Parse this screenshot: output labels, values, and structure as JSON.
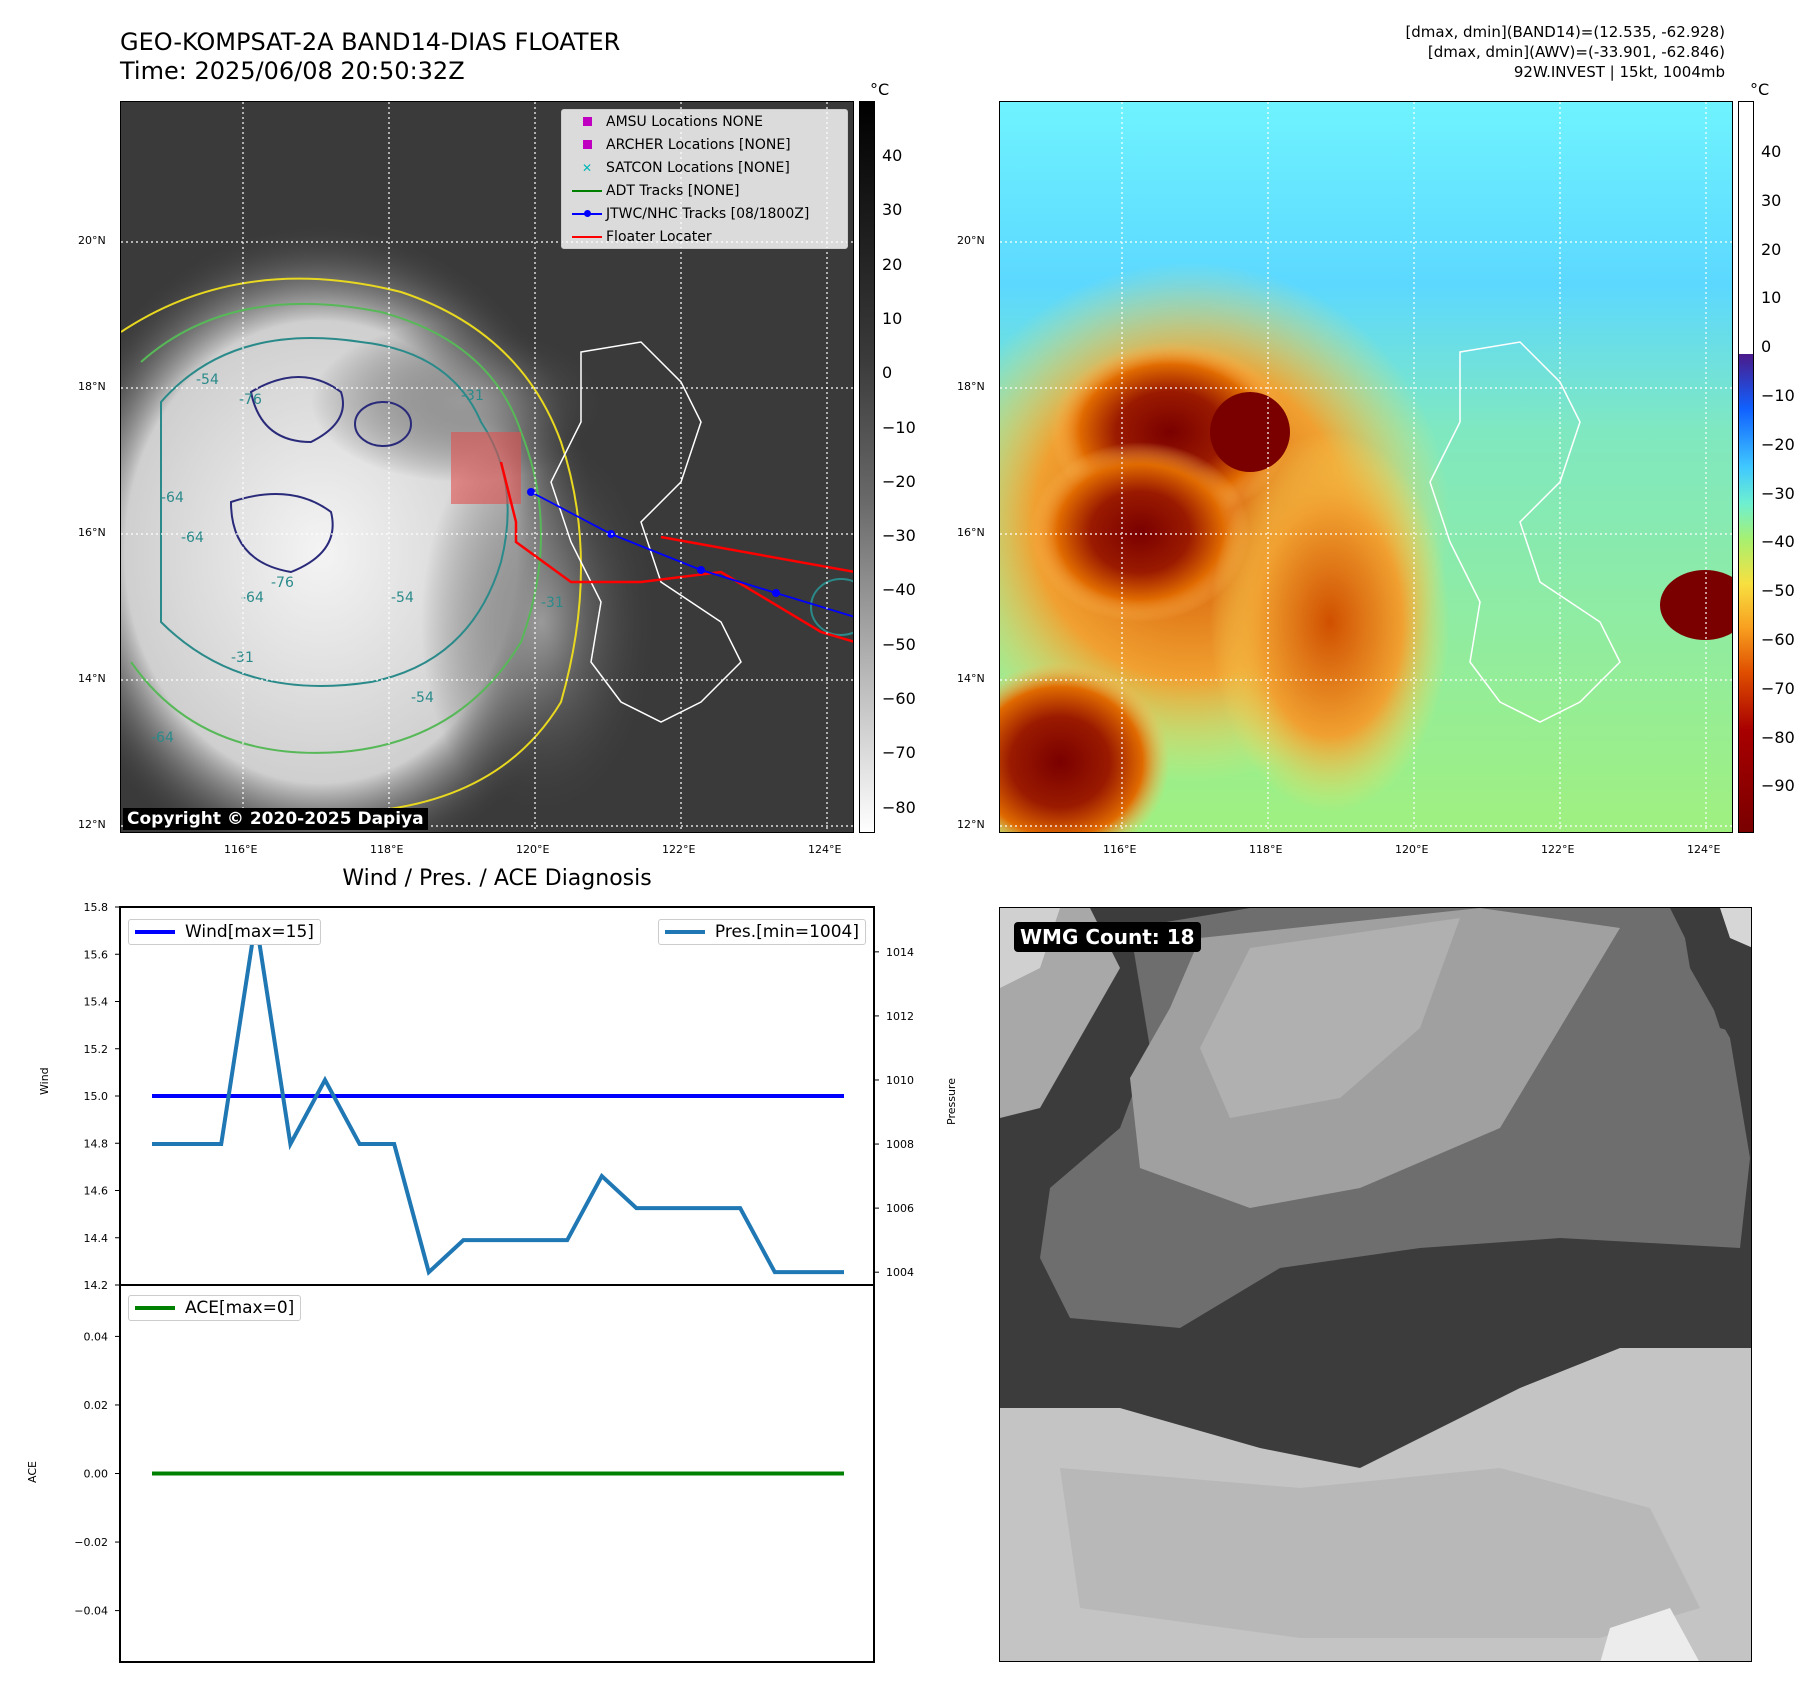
{
  "header": {
    "title_line1": "GEO-KOMPSAT-2A BAND14-DIAS FLOATER",
    "title_line2": "Time: 2025/06/08 20:50:32Z",
    "info_line1": "[dmax, dmin](BAND14)=(12.535, -62.928)",
    "info_line2": "[dmax, dmin](AWV)=(-33.901, -62.846)",
    "info_line3": "92W.INVEST | 15kt, 1004mb"
  },
  "map_axes": {
    "lat_labels": [
      "20°N",
      "18°N",
      "16°N",
      "14°N",
      "12°N"
    ],
    "lon_labels": [
      "116°E",
      "118°E",
      "120°E",
      "122°E",
      "124°E"
    ]
  },
  "ir_panel": {
    "legend": [
      {
        "label": "AMSU Locations NONE",
        "marker": "square",
        "color": "#c000c0"
      },
      {
        "label": "ARCHER Locations [NONE]",
        "marker": "square",
        "color": "#c000c0"
      },
      {
        "label": "SATCON Locations [NONE]",
        "marker": "x",
        "color": "#00b8b8"
      },
      {
        "label": "ADT Tracks [NONE]",
        "marker": "line",
        "color": "#008000"
      },
      {
        "label": "JTWC/NHC Tracks [08/1800Z]",
        "marker": "line-dot",
        "color": "#0000ff"
      },
      {
        "label": "Floater Locater",
        "marker": "line",
        "color": "#ff0000"
      }
    ],
    "copyright": "Copyright © 2020-2025 Dapiya",
    "contour_labels": [
      "-54",
      "-76",
      "-64",
      "-31",
      "-64",
      "-76",
      "-54",
      "-64",
      "-31",
      "-64",
      "-54",
      "-31"
    ],
    "colorbar_unit": "°C",
    "colorbar_ticks": [
      "40",
      "30",
      "20",
      "10",
      "0",
      "−10",
      "−20",
      "−30",
      "−40",
      "−50",
      "−60",
      "−70",
      "−80"
    ]
  },
  "awv_panel": {
    "colorbar_unit": "°C",
    "colorbar_ticks": [
      "40",
      "30",
      "20",
      "10",
      "0",
      "−10",
      "−20",
      "−30",
      "−40",
      "−50",
      "−60",
      "−70",
      "−80",
      "−90"
    ]
  },
  "wmg_panel": {
    "label": "WMG Count: 18"
  },
  "colors": {
    "wind": "#0000ff",
    "pressure": "#1f77b4",
    "ace": "#008000",
    "track": "#0000ff",
    "floater": "#ff0000"
  },
  "chart_data": [
    {
      "type": "line",
      "title": "Wind / Pres. / ACE Diagnosis",
      "ylabel": "Wind",
      "ylabel_right": "Pressure",
      "ylim": [
        14.2,
        15.8
      ],
      "ylim_right": [
        1003.6,
        1015.4
      ],
      "yticks": [
        14.2,
        14.4,
        14.6,
        14.8,
        15.0,
        15.2,
        15.4,
        15.6,
        15.8
      ],
      "yticks_right": [
        1004,
        1006,
        1008,
        1010,
        1012,
        1014
      ],
      "series": [
        {
          "name": "Wind[max=15]",
          "axis": "left",
          "values": [
            15,
            15,
            15,
            15,
            15,
            15,
            15,
            15,
            15,
            15,
            15,
            15,
            15,
            15,
            15,
            15,
            15,
            15,
            15,
            15,
            15
          ]
        },
        {
          "name": "Pres.[min=1004]",
          "axis": "right",
          "values": [
            1008,
            1008,
            1008,
            1015,
            1008,
            1010,
            1008,
            1008,
            1004,
            1005,
            1005,
            1005,
            1005,
            1007,
            1006,
            1006,
            1006,
            1006,
            1004,
            1004,
            1004
          ]
        }
      ]
    },
    {
      "type": "line",
      "ylabel": "ACE",
      "ylim": [
        -0.055,
        0.055
      ],
      "yticks": [
        -0.04,
        -0.02,
        0.0,
        0.02,
        0.04
      ],
      "series": [
        {
          "name": "ACE[max=0]",
          "values": [
            0,
            0,
            0,
            0,
            0,
            0,
            0,
            0,
            0,
            0,
            0,
            0,
            0,
            0,
            0,
            0,
            0,
            0,
            0,
            0,
            0
          ]
        }
      ]
    }
  ]
}
